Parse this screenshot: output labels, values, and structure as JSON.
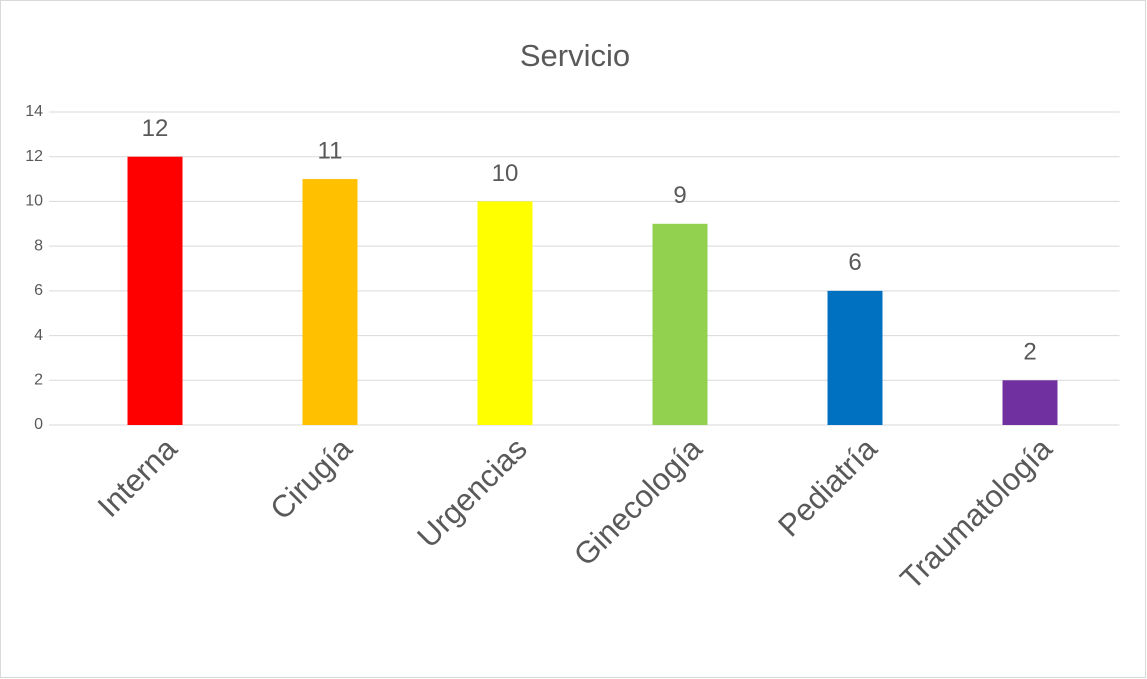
{
  "chart_data": {
    "type": "bar",
    "title": "Servicio",
    "categories": [
      "Interna",
      "Cirugía",
      "Urgencias",
      "Ginecología",
      "Pediatría",
      "Traumatología"
    ],
    "values": [
      12,
      11,
      10,
      9,
      6,
      2
    ],
    "colors": [
      "#ff0000",
      "#ffc000",
      "#ffff00",
      "#92d050",
      "#0070c0",
      "#7030a0"
    ],
    "ylim": [
      0,
      14
    ],
    "yticks": [
      0,
      2,
      4,
      6,
      8,
      10,
      12,
      14
    ],
    "grid": true
  }
}
